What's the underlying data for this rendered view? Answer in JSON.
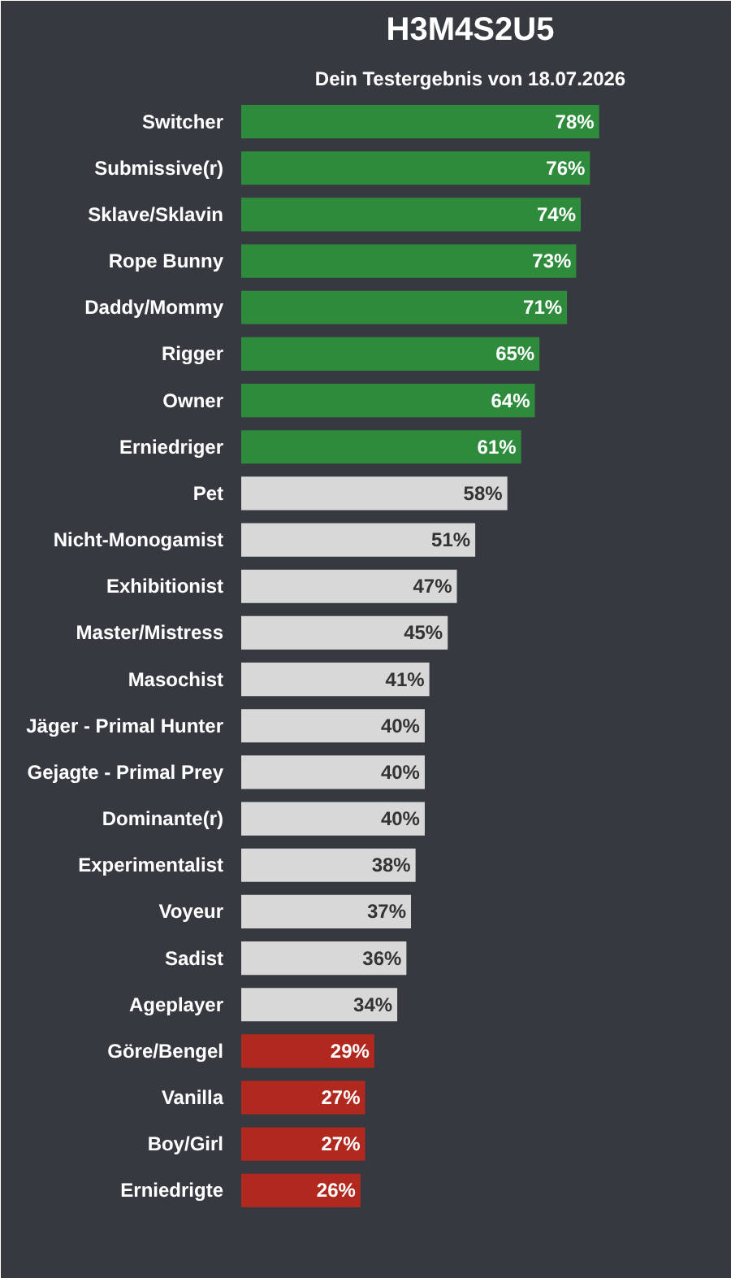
{
  "chart_data": {
    "type": "bar",
    "orientation": "horizontal",
    "title": "H3M4S2U5",
    "subtitle": "Dein Testergebnis von 18.07.2026",
    "categories": [
      "Switcher",
      "Submissive(r)",
      "Sklave/Sklavin",
      "Rope Bunny",
      "Daddy/Mommy",
      "Rigger",
      "Owner",
      "Erniedriger",
      "Pet",
      "Nicht-Monogamist",
      "Exhibitionist",
      "Master/Mistress",
      "Masochist",
      "Jäger - Primal Hunter",
      "Gejagte - Primal Prey",
      "Dominante(r)",
      "Experimentalist",
      "Voyeur",
      "Sadist",
      "Ageplayer",
      "Göre/Bengel",
      "Vanilla",
      "Boy/Girl",
      "Erniedrigte"
    ],
    "values": [
      78,
      76,
      74,
      73,
      71,
      65,
      64,
      61,
      58,
      51,
      47,
      45,
      41,
      40,
      40,
      40,
      38,
      37,
      36,
      34,
      29,
      27,
      27,
      26
    ],
    "value_labels": [
      "78%",
      "76%",
      "74%",
      "73%",
      "71%",
      "65%",
      "64%",
      "61%",
      "58%",
      "51%",
      "47%",
      "45%",
      "41%",
      "40%",
      "40%",
      "40%",
      "38%",
      "37%",
      "36%",
      "34%",
      "29%",
      "27%",
      "27%",
      "26%"
    ],
    "colors": [
      "#2e8b3c",
      "#2e8b3c",
      "#2e8b3c",
      "#2e8b3c",
      "#2e8b3c",
      "#2e8b3c",
      "#2e8b3c",
      "#2e8b3c",
      "#d8d8d8",
      "#d8d8d8",
      "#d8d8d8",
      "#d8d8d8",
      "#d8d8d8",
      "#d8d8d8",
      "#d8d8d8",
      "#d8d8d8",
      "#d8d8d8",
      "#d8d8d8",
      "#d8d8d8",
      "#d8d8d8",
      "#b0281e",
      "#b0281e",
      "#b0281e",
      "#b0281e"
    ],
    "grid": false
  }
}
